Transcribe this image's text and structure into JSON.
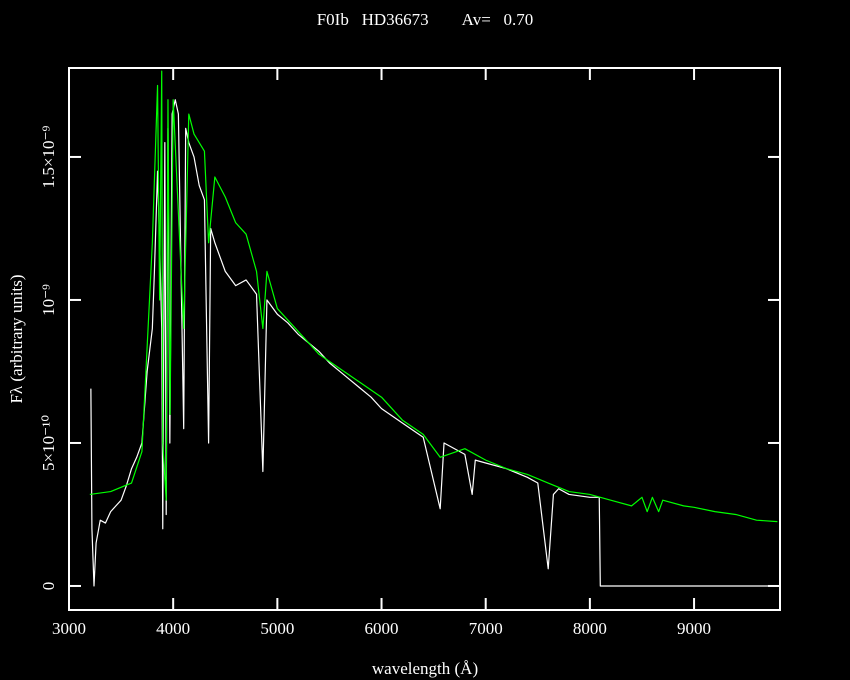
{
  "chart_data": {
    "type": "line",
    "title": "F0Ib   HD36673        Av=   0.70",
    "x_label": "wavelength (Å)",
    "y_label": "Fλ (arbitrary units)",
    "xlim": [
      3000,
      9825
    ],
    "ylim": [
      -8.4e-11,
      1.811e-09
    ],
    "xticks": [
      3000,
      4000,
      5000,
      6000,
      7000,
      8000,
      9000
    ],
    "yticks": [
      0,
      {
        "value": 5e-10,
        "label": "5×10⁻¹⁰"
      },
      {
        "value": 1e-09,
        "label": "10⁻⁹"
      },
      {
        "value": 1.5e-09,
        "label": "1.5×10⁻⁹"
      }
    ],
    "series": [
      {
        "color": "#ffffff",
        "x": [
          3210,
          3220,
          3240,
          3260,
          3300,
          3350,
          3400,
          3450,
          3500,
          3550,
          3600,
          3650,
          3700,
          3750,
          3800,
          3820,
          3850,
          3870,
          3890,
          3900,
          3920,
          3933,
          3950,
          3968,
          3990,
          4020,
          4050,
          4101,
          4120,
          4150,
          4200,
          4250,
          4300,
          4340,
          4360,
          4400,
          4450,
          4500,
          4600,
          4700,
          4800,
          4861,
          4900,
          5000,
          5100,
          5200,
          5300,
          5400,
          5500,
          5600,
          5700,
          5800,
          5900,
          6000,
          6200,
          6400,
          6563,
          6600,
          6800,
          6870,
          6900,
          7000,
          7200,
          7400,
          7500,
          7600,
          7650,
          7700,
          7800,
          8000,
          8090,
          8100,
          9825
        ],
        "values": [
          6.9e-10,
          2e-10,
          0,
          1.5e-10,
          2.3e-10,
          2.2e-10,
          2.6e-10,
          2.8e-10,
          3e-10,
          3.5e-10,
          4.1e-10,
          4.5e-10,
          5e-10,
          7.5e-10,
          9e-10,
          1.1e-09,
          1.45e-09,
          1.2e-09,
          9e-10,
          2e-10,
          1.55e-09,
          2.5e-10,
          1.6e-09,
          5e-10,
          1.65e-09,
          1.7e-09,
          1.65e-09,
          5.5e-10,
          1.6e-09,
          1.55e-09,
          1.5e-09,
          1.4e-09,
          1.35e-09,
          5e-10,
          1.25e-09,
          1.2e-09,
          1.15e-09,
          1.1e-09,
          1.05e-09,
          1.07e-09,
          1.02e-09,
          4e-10,
          1e-09,
          9.5e-10,
          9.2e-10,
          8.8e-10,
          8.5e-10,
          8.2e-10,
          7.8e-10,
          7.5e-10,
          7.2e-10,
          6.9e-10,
          6.6e-10,
          6.2e-10,
          5.7e-10,
          5.2e-10,
          2.7e-10,
          5e-10,
          4.6e-10,
          3.2e-10,
          4.4e-10,
          4.3e-10,
          4.1e-10,
          3.8e-10,
          3.6e-10,
          6e-11,
          3.2e-10,
          3.4e-10,
          3.2e-10,
          3.1e-10,
          3.1e-10,
          0,
          0
        ]
      },
      {
        "color": "#00ff00",
        "x": [
          3200,
          3400,
          3600,
          3700,
          3800,
          3850,
          3870,
          3890,
          3900,
          3933,
          3950,
          3970,
          4000,
          4101,
          4150,
          4200,
          4300,
          4340,
          4400,
          4500,
          4600,
          4700,
          4800,
          4861,
          4900,
          5000,
          5200,
          5400,
          5600,
          5800,
          6000,
          6200,
          6400,
          6563,
          6800,
          7000,
          7200,
          7400,
          7600,
          7800,
          8000,
          8200,
          8400,
          8500,
          8550,
          8600,
          8660,
          8700,
          8900,
          9000,
          9200,
          9400,
          9600,
          9800
        ],
        "values": [
          3.2e-10,
          3.3e-10,
          3.6e-10,
          4.7e-10,
          1.2e-09,
          1.75e-09,
          1e-09,
          1.8e-09,
          5e-10,
          3e-10,
          1.7e-09,
          6e-10,
          1.7e-09,
          9e-10,
          1.65e-09,
          1.58e-09,
          1.52e-09,
          1.2e-09,
          1.43e-09,
          1.36e-09,
          1.27e-09,
          1.23e-09,
          1.1e-09,
          9e-10,
          1.1e-09,
          9.7e-10,
          8.9e-10,
          8.1e-10,
          7.6e-10,
          7.1e-10,
          6.6e-10,
          5.8e-10,
          5.3e-10,
          4.5e-10,
          4.8e-10,
          4.4e-10,
          4.1e-10,
          3.9e-10,
          3.6e-10,
          3.3e-10,
          3.2e-10,
          3e-10,
          2.8e-10,
          3.1e-10,
          2.6e-10,
          3.1e-10,
          2.6e-10,
          3e-10,
          2.8e-10,
          2.75e-10,
          2.6e-10,
          2.5e-10,
          2.3e-10,
          2.25e-10
        ]
      }
    ]
  }
}
